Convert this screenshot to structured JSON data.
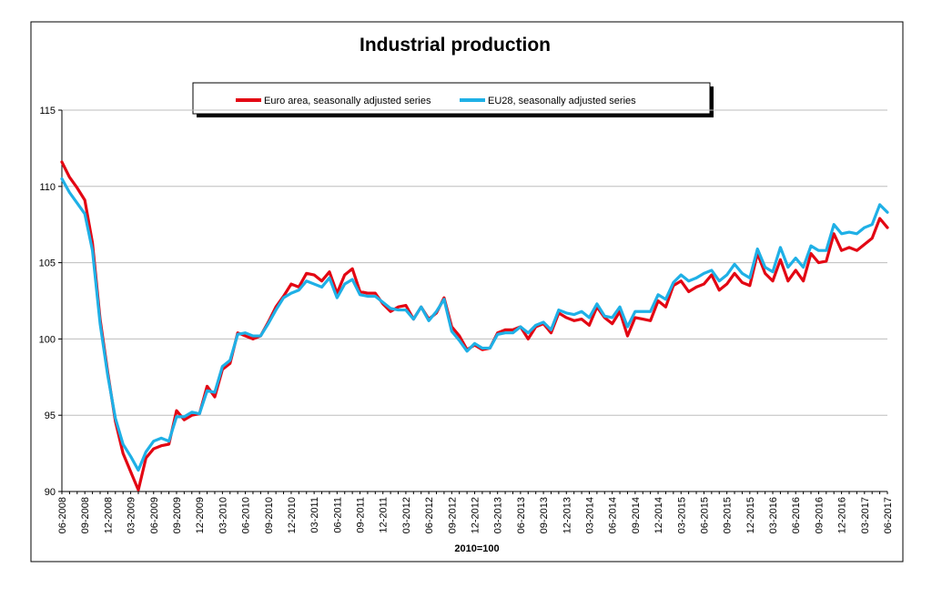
{
  "chart_data": {
    "type": "line",
    "title": "Industrial production",
    "xlabel": "2010=100",
    "ylabel": "",
    "ylim": [
      90,
      115
    ],
    "yticks": [
      90,
      95,
      100,
      105,
      110,
      115
    ],
    "grid": true,
    "legend_position": "top-center",
    "x_tick_labels": [
      "06-2008",
      "09-2008",
      "12-2008",
      "03-2009",
      "06-2009",
      "09-2009",
      "12-2009",
      "03-2010",
      "06-2010",
      "09-2010",
      "12-2010",
      "03-2011",
      "06-2011",
      "09-2011",
      "12-2011",
      "03-2012",
      "06-2012",
      "09-2012",
      "12-2012",
      "03-2013",
      "06-2013",
      "09-2013",
      "12-2013",
      "03-2014",
      "06-2014",
      "09-2014",
      "12-2014",
      "03-2015",
      "06-2015",
      "09-2015",
      "12-2015",
      "03-2016",
      "06-2016",
      "09-2016",
      "12-2016",
      "03-2017",
      "06-2017"
    ],
    "series": [
      {
        "name": "Euro area, seasonally adjusted series",
        "color": "#e30613",
        "values": [
          111.6,
          110.6,
          109.9,
          109.1,
          106.3,
          101.3,
          97.8,
          94.6,
          92.5,
          91.3,
          90.1,
          92.2,
          92.8,
          93.0,
          93.1,
          95.3,
          94.7,
          95.0,
          95.1,
          96.9,
          96.2,
          98.0,
          98.4,
          100.4,
          100.2,
          100.0,
          100.2,
          101.1,
          102.1,
          102.8,
          103.6,
          103.4,
          104.3,
          104.2,
          103.8,
          104.4,
          103.0,
          104.2,
          104.6,
          103.1,
          103.0,
          103.0,
          102.3,
          101.8,
          102.1,
          102.2,
          101.3,
          102.1,
          101.3,
          101.7,
          102.7,
          100.8,
          100.2,
          99.3,
          99.6,
          99.3,
          99.4,
          100.4,
          100.6,
          100.6,
          100.8,
          100.0,
          100.8,
          101.0,
          100.4,
          101.7,
          101.4,
          101.2,
          101.3,
          100.9,
          102.1,
          101.4,
          101.0,
          101.8,
          100.2,
          101.4,
          101.3,
          101.2,
          102.5,
          102.1,
          103.5,
          103.8,
          103.1,
          103.4,
          103.6,
          104.2,
          103.2,
          103.6,
          104.3,
          103.7,
          103.5,
          105.6,
          104.3,
          103.8,
          105.2,
          103.8,
          104.5,
          103.8,
          105.6,
          105.0,
          105.1,
          106.9,
          105.8,
          106.0,
          105.8,
          106.2,
          106.6,
          107.9,
          107.3
        ]
      },
      {
        "name": "EU28, seasonally adjusted series",
        "color": "#1fb0e6",
        "values": [
          110.5,
          109.6,
          108.9,
          108.2,
          105.8,
          101.0,
          97.6,
          94.8,
          93.1,
          92.3,
          91.4,
          92.6,
          93.3,
          93.5,
          93.3,
          94.9,
          94.9,
          95.2,
          95.1,
          96.6,
          96.5,
          98.2,
          98.6,
          100.3,
          100.4,
          100.2,
          100.2,
          101.0,
          101.9,
          102.7,
          103.0,
          103.2,
          103.8,
          103.6,
          103.4,
          104.0,
          102.7,
          103.6,
          103.9,
          102.9,
          102.8,
          102.8,
          102.4,
          102.0,
          101.9,
          101.9,
          101.3,
          102.1,
          101.2,
          101.8,
          102.6,
          100.5,
          99.9,
          99.2,
          99.7,
          99.4,
          99.4,
          100.3,
          100.4,
          100.4,
          100.8,
          100.4,
          100.9,
          101.1,
          100.6,
          101.9,
          101.7,
          101.6,
          101.8,
          101.4,
          102.3,
          101.5,
          101.4,
          102.1,
          100.8,
          101.8,
          101.8,
          101.8,
          102.9,
          102.6,
          103.7,
          104.2,
          103.8,
          104.0,
          104.3,
          104.5,
          103.8,
          104.2,
          104.9,
          104.3,
          104.0,
          105.9,
          104.7,
          104.4,
          106.0,
          104.7,
          105.3,
          104.7,
          106.1,
          105.8,
          105.8,
          107.5,
          106.9,
          107.0,
          106.9,
          107.3,
          107.5,
          108.8,
          108.3
        ]
      }
    ]
  }
}
